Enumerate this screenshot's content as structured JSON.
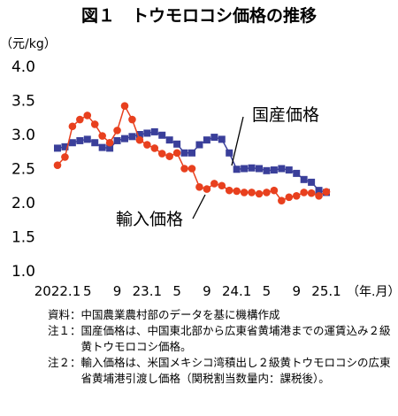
{
  "title": "図１　トウモロコシ価格の推移",
  "chart_data": {
    "type": "line",
    "ylabel": "（元/kg）",
    "xlabel": "（年.月）",
    "ylim": [
      1.0,
      4.0
    ],
    "yticks": [
      "1.0",
      "1.5",
      "2.0",
      "2.5",
      "3.0",
      "3.5",
      "4.0"
    ],
    "x": [
      "2022.1",
      "2022.2",
      "2022.3",
      "2022.4",
      "2022.5",
      "2022.6",
      "2022.7",
      "2022.8",
      "2022.9",
      "2022.10",
      "2022.11",
      "2022.12",
      "2023.1",
      "2023.2",
      "2023.3",
      "2023.4",
      "2023.5",
      "2023.6",
      "2023.7",
      "2023.8",
      "2023.9",
      "2023.10",
      "2023.11",
      "2023.12",
      "2024.1",
      "2024.2",
      "2024.3",
      "2024.4",
      "2024.5",
      "2024.6",
      "2024.7",
      "2024.8",
      "2024.9",
      "2024.10",
      "2024.11",
      "2024.12",
      "2025.1"
    ],
    "xtick_labels": [
      {
        "index": 0,
        "label": "2022.1"
      },
      {
        "index": 4,
        "label": "5"
      },
      {
        "index": 8,
        "label": "9"
      },
      {
        "index": 12,
        "label": "23.1"
      },
      {
        "index": 16,
        "label": "5"
      },
      {
        "index": 20,
        "label": "9"
      },
      {
        "index": 24,
        "label": "24.1"
      },
      {
        "index": 28,
        "label": "5"
      },
      {
        "index": 32,
        "label": "9"
      },
      {
        "index": 36,
        "label": "25.1"
      }
    ],
    "series": [
      {
        "name": "国産価格",
        "color": "#3a3f9a",
        "marker": "square",
        "values": [
          2.8,
          2.82,
          2.88,
          2.91,
          2.93,
          2.88,
          2.81,
          2.8,
          2.91,
          2.94,
          2.97,
          3.0,
          3.02,
          3.04,
          2.99,
          2.92,
          2.86,
          2.73,
          2.73,
          2.85,
          2.92,
          2.96,
          2.93,
          2.73,
          2.49,
          2.5,
          2.51,
          2.5,
          2.47,
          2.48,
          2.5,
          2.48,
          2.43,
          2.34,
          2.3,
          2.18,
          2.15
        ]
      },
      {
        "name": "輸入価格",
        "color": "#e8401e",
        "marker": "circle",
        "values": [
          2.55,
          2.67,
          3.12,
          3.22,
          3.28,
          3.15,
          2.98,
          2.88,
          3.06,
          3.42,
          3.22,
          2.92,
          2.85,
          2.8,
          2.72,
          2.68,
          2.73,
          2.5,
          2.5,
          2.23,
          2.2,
          2.28,
          2.25,
          2.18,
          2.17,
          2.15,
          2.15,
          2.13,
          2.15,
          2.18,
          2.03,
          2.08,
          2.1,
          2.15,
          2.14,
          2.1,
          2.16
        ]
      }
    ],
    "annotations": [
      "国産価格",
      "輸入価格"
    ]
  },
  "notes": [
    {
      "label": "資料：",
      "text": "中国農業農村部のデータを基に機構作成"
    },
    {
      "label": "注１：",
      "text": "国産価格は、中国東北部から広東省黄埔港までの運賃込み２級黄トウモロコシ価格。"
    },
    {
      "label": "注２：",
      "text": "輸入価格は、米国メキシコ湾積出し２級黄トウモロコシの広東省黄埔港引渡し価格（関税割当数量内：課税後）。"
    }
  ]
}
